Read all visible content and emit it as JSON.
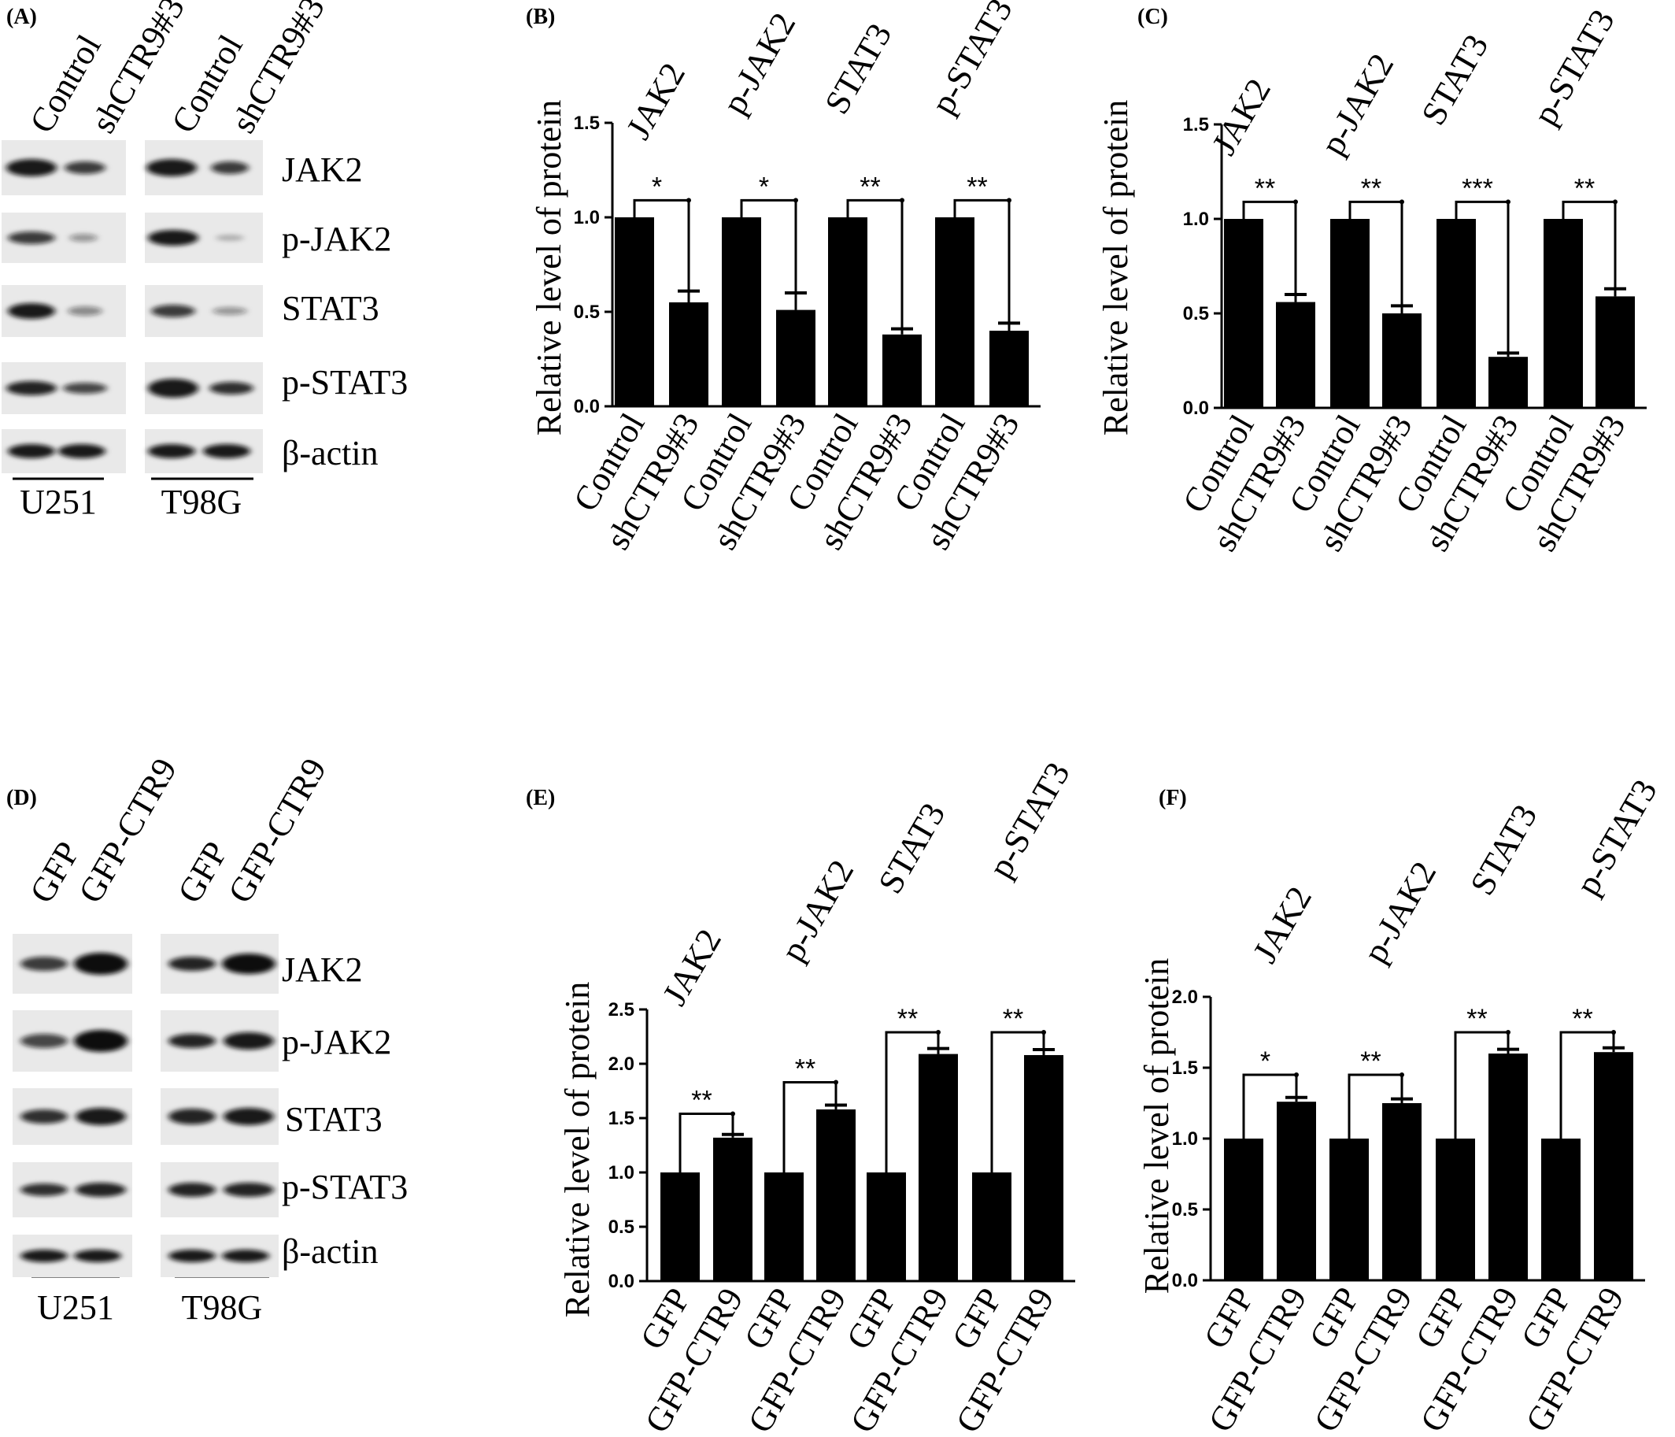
{
  "panels": [
    {
      "letter": "(A)"
    },
    {
      "letter": "(B)"
    },
    {
      "letter": "(C)"
    },
    {
      "letter": "(D)"
    },
    {
      "letter": "(E)"
    },
    {
      "letter": "(F)"
    }
  ],
  "blot_A": {
    "lanes": [
      "Control",
      "shCTR9#3",
      "Control",
      "shCTR9#3"
    ],
    "proteins": [
      "JAK2",
      "p-JAK2",
      "STAT3",
      "p-STAT3",
      "β-actin"
    ],
    "cell_lines": [
      "U251",
      "T98G"
    ]
  },
  "blot_D": {
    "lanes": [
      "GFP",
      "GFP-CTR9",
      "GFP",
      "GFP-CTR9"
    ],
    "proteins": [
      "JAK2",
      "p-JAK2",
      "STAT3",
      "p-STAT3",
      "β-actin"
    ],
    "cell_lines": [
      "U251",
      "T98G"
    ]
  },
  "chart_data": [
    {
      "panel": "(B)",
      "type": "bar",
      "ylabel": "Relative level of protein",
      "ylim": [
        0,
        1.5
      ],
      "yticks": [
        "0.0",
        "0.5",
        "1.0",
        "1.5"
      ],
      "groups": [
        "JAK2",
        "p-JAK2",
        "STAT3",
        "p-STAT3"
      ],
      "categories": [
        "Control",
        "shCTR9#3"
      ],
      "values": [
        [
          1.0,
          0.55
        ],
        [
          1.0,
          0.51
        ],
        [
          1.0,
          0.38
        ],
        [
          1.0,
          0.4
        ]
      ],
      "errors": [
        [
          0,
          0.06
        ],
        [
          0,
          0.09
        ],
        [
          0,
          0.03
        ],
        [
          0,
          0.04
        ]
      ],
      "significance": [
        "*",
        "*",
        "**",
        "**"
      ],
      "bracket_level": 1.09
    },
    {
      "panel": "(C)",
      "type": "bar",
      "ylabel": "Relative level of protein",
      "ylim": [
        0,
        1.5
      ],
      "yticks": [
        "0.0",
        "0.5",
        "1.0",
        "1.5"
      ],
      "groups": [
        "JAK2",
        "p-JAK2",
        "STAT3",
        "p-STAT3"
      ],
      "categories": [
        "Control",
        "shCTR9#3"
      ],
      "values": [
        [
          1.0,
          0.56
        ],
        [
          1.0,
          0.5
        ],
        [
          1.0,
          0.27
        ],
        [
          1.0,
          0.59
        ]
      ],
      "errors": [
        [
          0,
          0.04
        ],
        [
          0,
          0.04
        ],
        [
          0,
          0.02
        ],
        [
          0,
          0.04
        ]
      ],
      "significance": [
        "**",
        "**",
        "***",
        "**"
      ],
      "bracket_level": 1.09
    },
    {
      "panel": "(E)",
      "type": "bar",
      "ylabel": "Relative level of protein",
      "ylim": [
        0,
        2.5
      ],
      "yticks": [
        "0.0",
        "0.5",
        "1.0",
        "1.5",
        "2.0",
        "2.5"
      ],
      "groups": [
        "JAK2",
        "p-JAK2",
        "STAT3",
        "p-STAT3"
      ],
      "categories": [
        "GFP",
        "GFP-CTR9"
      ],
      "values": [
        [
          1.0,
          1.32
        ],
        [
          1.0,
          1.58
        ],
        [
          1.0,
          2.09
        ],
        [
          1.0,
          2.08
        ]
      ],
      "errors": [
        [
          0,
          0.03
        ],
        [
          0,
          0.04
        ],
        [
          0,
          0.05
        ],
        [
          0,
          0.05
        ]
      ],
      "significance": [
        "**",
        "**",
        "**",
        "**"
      ],
      "bracket_levels": [
        1.54,
        1.83,
        2.29,
        2.29
      ]
    },
    {
      "panel": "(F)",
      "type": "bar",
      "ylabel": "Relative level of protein",
      "ylim": [
        0,
        2.0
      ],
      "yticks": [
        "0.0",
        "0.5",
        "1.0",
        "1.5",
        "2.0"
      ],
      "groups": [
        "JAK2",
        "p-JAK2",
        "STAT3",
        "p-STAT3"
      ],
      "categories": [
        "GFP",
        "GFP-CTR9"
      ],
      "values": [
        [
          1.0,
          1.26
        ],
        [
          1.0,
          1.25
        ],
        [
          1.0,
          1.6
        ],
        [
          1.0,
          1.61
        ]
      ],
      "errors": [
        [
          0,
          0.03
        ],
        [
          0,
          0.03
        ],
        [
          0,
          0.03
        ],
        [
          0,
          0.03
        ]
      ],
      "significance": [
        "*",
        "**",
        "**",
        "**"
      ],
      "bracket_levels": [
        1.45,
        1.45,
        1.75,
        1.75
      ]
    }
  ]
}
